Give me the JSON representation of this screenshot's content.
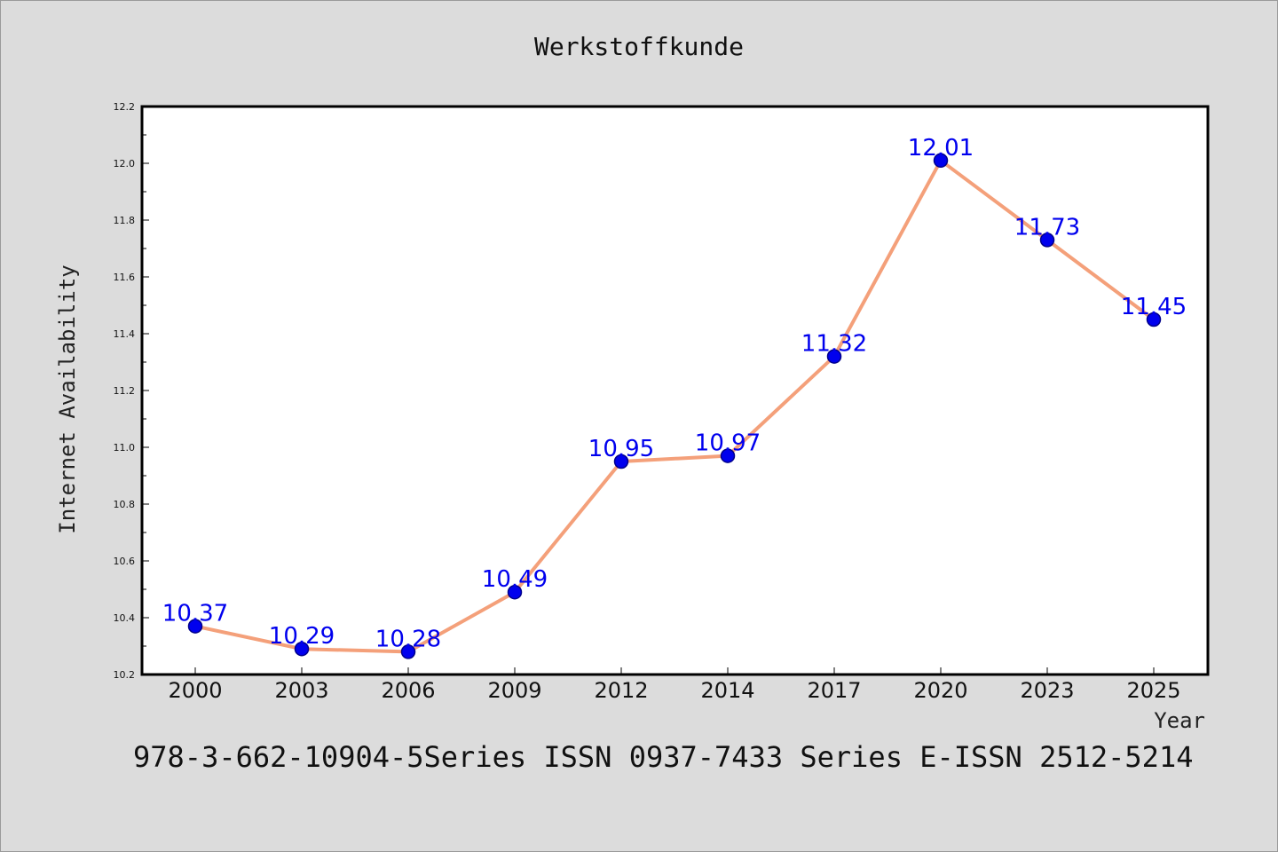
{
  "chart_data": {
    "type": "line",
    "title": "Werkstoffkunde",
    "xlabel": "Year",
    "ylabel": "Internet Availability",
    "categories": [
      "2000",
      "2003",
      "2006",
      "2009",
      "2012",
      "2014",
      "2017",
      "2020",
      "2023",
      "2025"
    ],
    "series": [
      {
        "values": [
          10.37,
          10.29,
          10.28,
          10.49,
          10.95,
          10.97,
          11.32,
          12.01,
          11.73,
          11.45
        ],
        "labels": [
          "10.37",
          "10.29",
          "10.28",
          "10.49",
          "10.95",
          "10.97",
          "11.32",
          "12.01",
          "11.73",
          "11.45"
        ],
        "line_color": "#f4a07a",
        "marker_color": "#0000ee"
      }
    ],
    "ylim": [
      10.2,
      12.2
    ],
    "yticks": [
      "10.2",
      "10.4",
      "10.6",
      "10.8",
      "11.0",
      "11.2",
      "11.4",
      "11.6",
      "11.8",
      "12.0",
      "12.2"
    ],
    "grid": false,
    "legend": "none"
  },
  "footer": "978-3-662-10904-5Series ISSN 0937-7433 Series E-ISSN 2512-5214",
  "colors": {
    "background": "#dcdcdc",
    "plot_background": "#ffffff",
    "data_label": "#0000ee"
  }
}
